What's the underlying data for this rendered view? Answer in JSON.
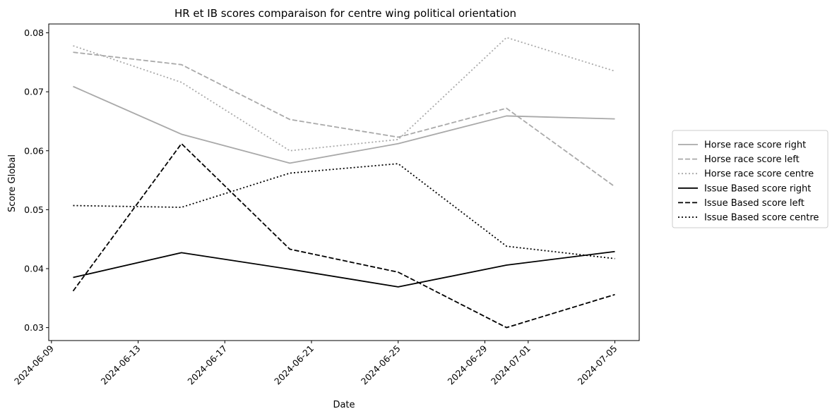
{
  "chart_data": {
    "type": "line",
    "title": "HR et IB scores comparaison for centre wing political orientation",
    "xlabel": "Date",
    "ylabel": "Score Global",
    "x": [
      "2024-06-10",
      "2024-06-15",
      "2024-06-20",
      "2024-06-25",
      "2024-06-30",
      "2024-07-05"
    ],
    "xticks": [
      "2024-06-09",
      "2024-06-13",
      "2024-06-17",
      "2024-06-21",
      "2024-06-25",
      "2024-06-29",
      "2024-07-01",
      "2024-07-05"
    ],
    "xlim": [
      "2024-06-08T21:00",
      "2024-07-06T03:00"
    ],
    "yticks": [
      0.03,
      0.04,
      0.05,
      0.06,
      0.07,
      0.08
    ],
    "ytick_labels": [
      "0.03",
      "0.04",
      "0.05",
      "0.06",
      "0.07",
      "0.08"
    ],
    "ylim": [
      0.0278,
      0.0815
    ],
    "grid": false,
    "legend_position": "right, outside plot",
    "series": [
      {
        "name": "Horse race score right",
        "color": "#a9a9a9",
        "dash": "solid",
        "values": [
          0.0709,
          0.0628,
          0.0579,
          0.0612,
          0.0659,
          0.0654
        ]
      },
      {
        "name": "Horse race score left",
        "color": "#a9a9a9",
        "dash": "dashed",
        "values": [
          0.0767,
          0.0746,
          0.0653,
          0.0623,
          0.0672,
          0.0539
        ]
      },
      {
        "name": "Horse race score centre",
        "color": "#a9a9a9",
        "dash": "dotted",
        "values": [
          0.0778,
          0.0716,
          0.06,
          0.0619,
          0.0792,
          0.0735
        ]
      },
      {
        "name": "Issue Based score right",
        "color": "#000000",
        "dash": "solid",
        "values": [
          0.0385,
          0.0427,
          0.0399,
          0.0369,
          0.0406,
          0.0429
        ]
      },
      {
        "name": "Issue Based score left",
        "color": "#000000",
        "dash": "dashed",
        "values": [
          0.0362,
          0.0612,
          0.0433,
          0.0394,
          0.03,
          0.0356
        ]
      },
      {
        "name": "Issue Based score centre",
        "color": "#000000",
        "dash": "dotted",
        "values": [
          0.0507,
          0.0504,
          0.0562,
          0.0578,
          0.0438,
          0.0417
        ]
      }
    ]
  }
}
